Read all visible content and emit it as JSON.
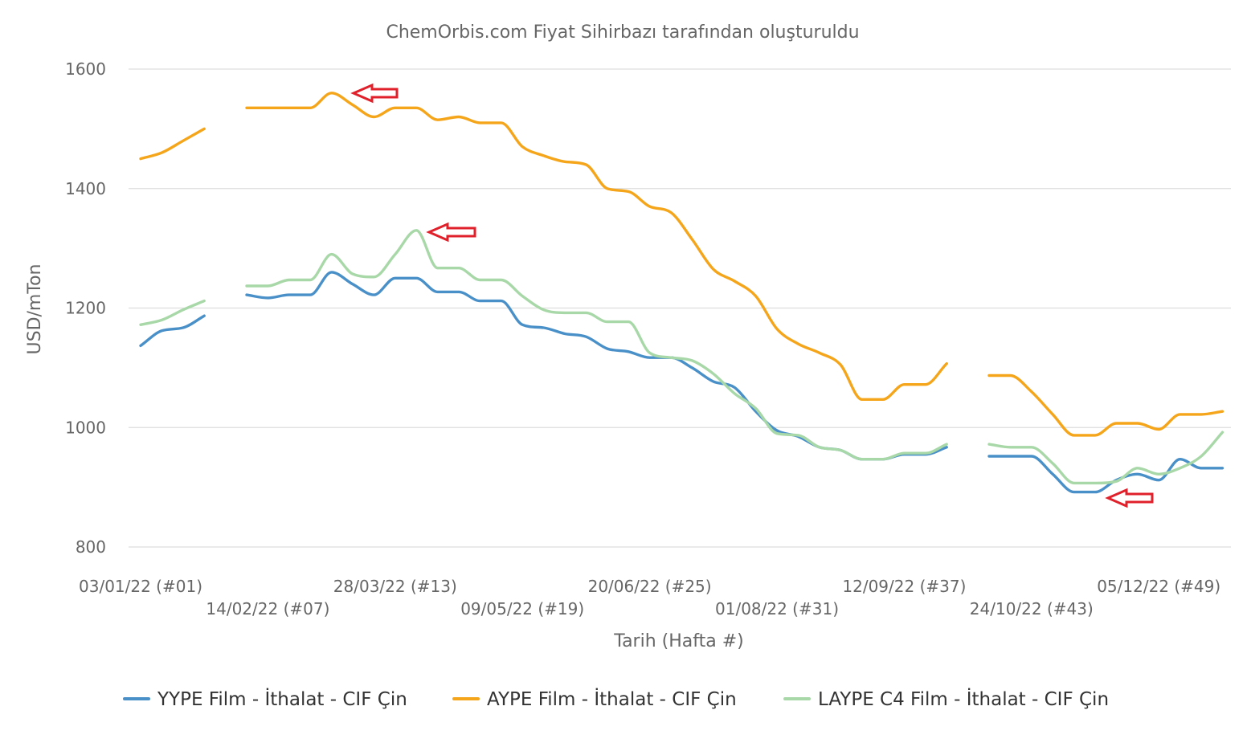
{
  "chart_data": {
    "type": "line",
    "title": "ChemOrbis.com Fiyat Sihirbazı tarafından oluşturuldu",
    "xlabel": "Tarih (Hafta #)",
    "ylabel": "USD/mTon",
    "ylim": [
      800,
      1600
    ],
    "yticks": [
      800,
      1000,
      1200,
      1400,
      1600
    ],
    "grid": true,
    "legend_position": "bottom",
    "x_ticks": [
      {
        "week": 1,
        "label": "03/01/22 (#01)"
      },
      {
        "week": 7,
        "label": "14/02/22 (#07)"
      },
      {
        "week": 13,
        "label": "28/03/22 (#13)"
      },
      {
        "week": 19,
        "label": "09/05/22 (#19)"
      },
      {
        "week": 25,
        "label": "20/06/22 (#25)"
      },
      {
        "week": 31,
        "label": "01/08/22 (#31)"
      },
      {
        "week": 37,
        "label": "12/09/22 (#37)"
      },
      {
        "week": 43,
        "label": "24/10/22 (#43)"
      },
      {
        "week": 49,
        "label": "05/12/22 (#49)"
      }
    ],
    "x_weeks": [
      1,
      2,
      3,
      4,
      5,
      6,
      7,
      8,
      9,
      10,
      11,
      12,
      13,
      14,
      15,
      16,
      17,
      18,
      19,
      20,
      21,
      22,
      23,
      24,
      25,
      26,
      27,
      28,
      29,
      30,
      31,
      32,
      33,
      34,
      35,
      36,
      37,
      38,
      39,
      40,
      41,
      42,
      43,
      44,
      45,
      46,
      47,
      48,
      49,
      50,
      51,
      52
    ],
    "series": [
      {
        "name": "YYPE Film - İthalat - CIF Çin",
        "color": "#4a90c8",
        "values": [
          1137,
          1162,
          1167,
          1187,
          null,
          1222,
          1217,
          1222,
          1222,
          1260,
          1240,
          1222,
          1250,
          1250,
          1227,
          1227,
          1212,
          1212,
          1172,
          1167,
          1157,
          1152,
          1132,
          1127,
          1117,
          1117,
          1100,
          1077,
          1067,
          1027,
          995,
          985,
          967,
          962,
          947,
          947,
          955,
          955,
          967,
          null,
          952,
          952,
          952,
          922,
          892,
          892,
          912,
          922,
          912,
          947,
          932,
          932
        ]
      },
      {
        "name": "AYPE Film - İthalat - CIF Çin",
        "color": "#f5a51a",
        "values": [
          1450,
          1460,
          1480,
          1500,
          null,
          1535,
          1535,
          1535,
          1535,
          1560,
          1540,
          1520,
          1535,
          1535,
          1515,
          1520,
          1510,
          1510,
          1470,
          1455,
          1445,
          1440,
          1400,
          1395,
          1370,
          1360,
          1315,
          1265,
          1245,
          1220,
          1165,
          1140,
          1125,
          1105,
          1047,
          1047,
          1072,
          1072,
          1107,
          null,
          1087,
          1087,
          1060,
          1022,
          987,
          987,
          1007,
          1007,
          997,
          1022,
          1022,
          1027
        ]
      },
      {
        "name": "LAYPE C4 Film - İthalat - CIF Çin",
        "color": "#a8d8a8",
        "values": [
          1172,
          1180,
          1197,
          1212,
          null,
          1237,
          1237,
          1247,
          1247,
          1290,
          1257,
          1252,
          1290,
          1330,
          1267,
          1267,
          1247,
          1247,
          1220,
          1197,
          1192,
          1192,
          1177,
          1177,
          1125,
          1117,
          1112,
          1090,
          1057,
          1032,
          990,
          987,
          967,
          962,
          947,
          947,
          957,
          957,
          972,
          null,
          972,
          967,
          967,
          940,
          907,
          907,
          910,
          932,
          922,
          932,
          952,
          992
        ]
      }
    ]
  }
}
